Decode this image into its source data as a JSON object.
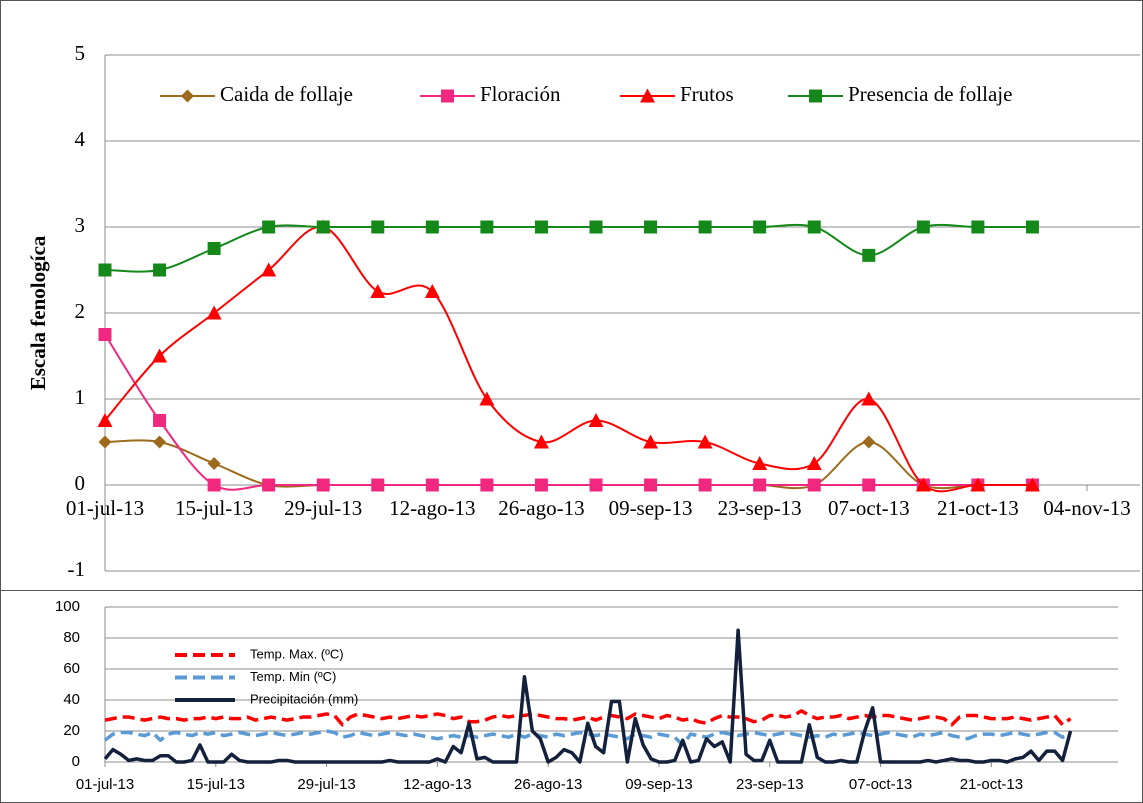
{
  "chart_data": [
    {
      "type": "line",
      "y_label": "Escala fenologíca",
      "smooth": true,
      "grid": true,
      "legend": "top",
      "x": [
        "2013-07-01",
        "2013-07-08",
        "2013-07-15",
        "2013-07-22",
        "2013-07-29",
        "2013-08-05",
        "2013-08-12",
        "2013-08-19",
        "2013-08-26",
        "2013-09-02",
        "2013-09-09",
        "2013-09-16",
        "2013-09-23",
        "2013-09-30",
        "2013-10-07",
        "2013-10-14",
        "2013-10-21",
        "2013-10-28"
      ],
      "xlim": [
        "2013-07-01",
        "2013-11-04"
      ],
      "xticks": [
        {
          "value": "2013-07-01",
          "label": "01-jul-13"
        },
        {
          "value": "2013-07-15",
          "label": "15-jul-13"
        },
        {
          "value": "2013-07-29",
          "label": "29-jul-13"
        },
        {
          "value": "2013-08-12",
          "label": "12-ago-13"
        },
        {
          "value": "2013-08-26",
          "label": "26-ago-13"
        },
        {
          "value": "2013-09-09",
          "label": "09-sep-13"
        },
        {
          "value": "2013-09-23",
          "label": "23-sep-13"
        },
        {
          "value": "2013-10-07",
          "label": "07-oct-13"
        },
        {
          "value": "2013-10-21",
          "label": "21-oct-13"
        },
        {
          "value": "2013-11-04",
          "label": "04-nov-13"
        }
      ],
      "ylim": [
        -1,
        5
      ],
      "yticks": [
        -1,
        0,
        1,
        2,
        3,
        4,
        5
      ],
      "series": [
        {
          "name": "Caida de follaje",
          "color": "#9c6a1c",
          "marker": "diamond",
          "values": [
            0.5,
            0.5,
            0.25,
            0,
            0,
            0,
            0,
            0,
            0,
            0,
            0,
            0,
            0,
            0,
            0.5,
            0,
            0,
            0
          ]
        },
        {
          "name": "Floración",
          "color": "#f0287f",
          "marker": "square",
          "values": [
            1.75,
            0.75,
            0,
            0,
            0,
            0,
            0,
            0,
            0,
            0,
            0,
            0,
            0,
            0,
            0,
            0,
            0,
            0
          ]
        },
        {
          "name": "Frutos",
          "color": "#ff0000",
          "marker": "triangle",
          "values": [
            0.75,
            1.5,
            2,
            2.5,
            3,
            2.25,
            2.25,
            1,
            0.5,
            0.75,
            0.5,
            0.5,
            0.25,
            0.25,
            1,
            0,
            0,
            0
          ]
        },
        {
          "name": "Presencia de follaje",
          "color": "#14891a",
          "marker": "square",
          "values": [
            2.5,
            2.5,
            2.75,
            3,
            3,
            3,
            3,
            3,
            3,
            3,
            3,
            3,
            3,
            3,
            2.67,
            3,
            3,
            3
          ]
        }
      ]
    },
    {
      "type": "line",
      "smooth": false,
      "grid": true,
      "legend": "upper left",
      "x": [
        "2013-07-01",
        "2013-07-02",
        "2013-07-03",
        "2013-07-04",
        "2013-07-05",
        "2013-07-06",
        "2013-07-07",
        "2013-07-08",
        "2013-07-09",
        "2013-07-10",
        "2013-07-11",
        "2013-07-12",
        "2013-07-13",
        "2013-07-14",
        "2013-07-15",
        "2013-07-16",
        "2013-07-17",
        "2013-07-18",
        "2013-07-19",
        "2013-07-20",
        "2013-07-21",
        "2013-07-22",
        "2013-07-23",
        "2013-07-24",
        "2013-07-25",
        "2013-07-26",
        "2013-07-27",
        "2013-07-28",
        "2013-07-29",
        "2013-07-30",
        "2013-07-31",
        "2013-08-01",
        "2013-08-02",
        "2013-08-03",
        "2013-08-04",
        "2013-08-05",
        "2013-08-06",
        "2013-08-07",
        "2013-08-08",
        "2013-08-09",
        "2013-08-10",
        "2013-08-11",
        "2013-08-12",
        "2013-08-13",
        "2013-08-14",
        "2013-08-15",
        "2013-08-16",
        "2013-08-17",
        "2013-08-18",
        "2013-08-19",
        "2013-08-20",
        "2013-08-21",
        "2013-08-22",
        "2013-08-23",
        "2013-08-24",
        "2013-08-25",
        "2013-08-26",
        "2013-08-27",
        "2013-08-28",
        "2013-08-29",
        "2013-08-30",
        "2013-08-31",
        "2013-09-01",
        "2013-09-02",
        "2013-09-03",
        "2013-09-04",
        "2013-09-05",
        "2013-09-06",
        "2013-09-07",
        "2013-09-08",
        "2013-09-09",
        "2013-09-10",
        "2013-09-11",
        "2013-09-12",
        "2013-09-13",
        "2013-09-14",
        "2013-09-15",
        "2013-09-16",
        "2013-09-17",
        "2013-09-18",
        "2013-09-19",
        "2013-09-20",
        "2013-09-21",
        "2013-09-22",
        "2013-09-23",
        "2013-09-24",
        "2013-09-25",
        "2013-09-26",
        "2013-09-27",
        "2013-09-28",
        "2013-09-29",
        "2013-09-30",
        "2013-10-01",
        "2013-10-02",
        "2013-10-03",
        "2013-10-04",
        "2013-10-05",
        "2013-10-06",
        "2013-10-07",
        "2013-10-08",
        "2013-10-09",
        "2013-10-10",
        "2013-10-11",
        "2013-10-12",
        "2013-10-13",
        "2013-10-14",
        "2013-10-15",
        "2013-10-16",
        "2013-10-17",
        "2013-10-18",
        "2013-10-19",
        "2013-10-20",
        "2013-10-21",
        "2013-10-22",
        "2013-10-23",
        "2013-10-24",
        "2013-10-25",
        "2013-10-26",
        "2013-10-27",
        "2013-10-28",
        "2013-10-29",
        "2013-10-30",
        "2013-10-31"
      ],
      "xlim": [
        "2013-07-01",
        "2013-11-06"
      ],
      "xticks": [
        {
          "value": "2013-07-01",
          "label": "01-jul-13"
        },
        {
          "value": "2013-07-15",
          "label": "15-jul-13"
        },
        {
          "value": "2013-07-29",
          "label": "29-jul-13"
        },
        {
          "value": "2013-08-12",
          "label": "12-ago-13"
        },
        {
          "value": "2013-08-26",
          "label": "26-ago-13"
        },
        {
          "value": "2013-09-09",
          "label": "09-sep-13"
        },
        {
          "value": "2013-09-23",
          "label": "23-sep-13"
        },
        {
          "value": "2013-10-07",
          "label": "07-oct-13"
        },
        {
          "value": "2013-10-21",
          "label": "21-oct-13"
        }
      ],
      "ylim": [
        0,
        100
      ],
      "yticks": [
        0,
        20,
        40,
        60,
        80,
        100
      ],
      "series": [
        {
          "name": "Temp. Max. (ºC)",
          "color": "#ff0000",
          "dashed": true,
          "values": [
            27,
            28,
            29,
            29,
            28,
            27,
            28,
            29,
            28,
            28,
            27,
            28,
            28,
            29,
            28,
            29,
            28,
            28,
            29,
            27,
            28,
            29,
            28,
            27,
            28,
            29,
            29,
            30,
            31,
            30,
            24,
            29,
            31,
            30,
            29,
            28,
            29,
            28,
            29,
            30,
            29,
            30,
            31,
            30,
            28,
            29,
            26,
            26,
            27,
            29,
            30,
            29,
            30,
            30,
            31,
            30,
            29,
            28,
            28,
            27,
            28,
            29,
            27,
            29,
            30,
            29,
            28,
            31,
            30,
            29,
            28,
            30,
            29,
            27,
            28,
            26,
            25,
            28,
            30,
            29,
            29,
            28,
            26,
            27,
            30,
            30,
            29,
            30,
            33,
            30,
            28,
            29,
            29,
            30,
            28,
            29,
            30,
            29,
            30,
            30,
            29,
            28,
            27,
            28,
            29,
            29,
            28,
            24,
            29,
            30,
            30,
            29,
            28,
            28,
            28,
            29,
            28,
            27,
            28,
            29,
            30,
            24,
            28
          ]
        },
        {
          "name": "Temp. Min (ºC)",
          "color": "#5b9bd5",
          "dashed": true,
          "values": [
            14,
            18,
            19,
            19,
            18,
            17,
            19,
            14,
            18,
            19,
            18,
            17,
            19,
            18,
            19,
            17,
            18,
            19,
            18,
            17,
            18,
            19,
            18,
            17,
            18,
            19,
            18,
            19,
            20,
            19,
            16,
            17,
            19,
            18,
            17,
            18,
            19,
            18,
            17,
            18,
            17,
            16,
            15,
            16,
            17,
            16,
            17,
            16,
            17,
            18,
            17,
            16,
            18,
            16,
            18,
            17,
            16,
            18,
            17,
            18,
            19,
            18,
            17,
            18,
            17,
            16,
            15,
            18,
            17,
            16,
            18,
            17,
            16,
            11,
            18,
            17,
            16,
            18,
            19,
            18,
            17,
            18,
            19,
            18,
            17,
            18,
            19,
            18,
            17,
            16,
            17,
            16,
            18,
            17,
            18,
            19,
            18,
            17,
            18,
            19,
            18,
            17,
            16,
            18,
            17,
            18,
            19,
            17,
            16,
            15,
            17,
            18,
            18,
            17,
            18,
            19,
            18,
            17,
            18,
            19,
            19,
            16,
            18
          ]
        },
        {
          "name": "Precipitación (mm)",
          "color": "#14213d",
          "dashed": false,
          "values": [
            2,
            8,
            5,
            1,
            2,
            1,
            1,
            4,
            4,
            0,
            0,
            1,
            11,
            0,
            0,
            0,
            5,
            1,
            0,
            0,
            0,
            0,
            1,
            1,
            0,
            0,
            0,
            0,
            0,
            0,
            0,
            0,
            0,
            0,
            0,
            0,
            1,
            0,
            0,
            0,
            0,
            0,
            2,
            0,
            10,
            6,
            25,
            2,
            3,
            0,
            0,
            0,
            0,
            55,
            20,
            15,
            0,
            3,
            8,
            6,
            0,
            25,
            10,
            6,
            39,
            39,
            0,
            28,
            11,
            2,
            0,
            0,
            1,
            14,
            0,
            1,
            15,
            10,
            13,
            0,
            85,
            5,
            1,
            1,
            14,
            0,
            0,
            0,
            0,
            24,
            3,
            0,
            0,
            1,
            0,
            0,
            20,
            35,
            0,
            0,
            0,
            0,
            0,
            0,
            1,
            0,
            1,
            2,
            1,
            1,
            0,
            0,
            1,
            1,
            0,
            2,
            3,
            7,
            1,
            7,
            7,
            1,
            20
          ]
        }
      ]
    }
  ]
}
